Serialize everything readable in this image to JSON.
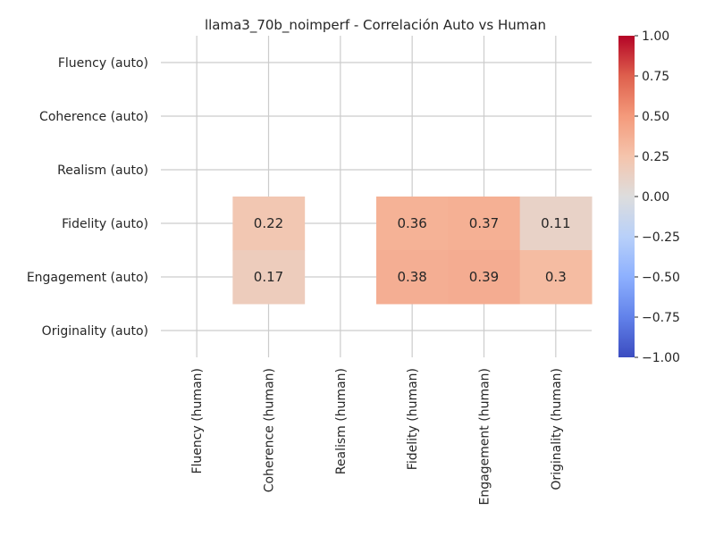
{
  "chart_data": {
    "type": "heatmap",
    "title": "llama3_70b_noimperf - Correlación Auto vs Human",
    "x_categories": [
      "Fluency (human)",
      "Coherence (human)",
      "Realism (human)",
      "Fidelity (human)",
      "Engagement (human)",
      "Originality (human)"
    ],
    "y_categories": [
      "Fluency (auto)",
      "Coherence (auto)",
      "Realism (auto)",
      "Fidelity (auto)",
      "Engagement (auto)",
      "Originality (auto)"
    ],
    "values": [
      [
        null,
        null,
        null,
        null,
        null,
        null
      ],
      [
        null,
        null,
        null,
        null,
        null,
        null
      ],
      [
        null,
        null,
        null,
        null,
        null,
        null
      ],
      [
        null,
        0.22,
        null,
        0.36,
        0.37,
        0.11
      ],
      [
        null,
        0.17,
        null,
        0.38,
        0.39,
        0.3
      ],
      [
        null,
        null,
        null,
        null,
        null,
        null
      ]
    ],
    "value_labels": [
      [
        "",
        "",
        "",
        "",
        "",
        ""
      ],
      [
        "",
        "",
        "",
        "",
        "",
        ""
      ],
      [
        "",
        "",
        "",
        "",
        "",
        ""
      ],
      [
        "",
        "0.22",
        "",
        "0.36",
        "0.37",
        "0.11"
      ],
      [
        "",
        "0.17",
        "",
        "0.38",
        "0.39",
        "0.3"
      ],
      [
        "",
        "",
        "",
        "",
        "",
        ""
      ]
    ],
    "colormap": "coolwarm",
    "vmin": -1,
    "vmax": 1,
    "colorbar_ticks": [
      "1.00",
      "0.75",
      "0.50",
      "0.25",
      "0.00",
      "−0.25",
      "−0.50",
      "−0.75",
      "−1.00"
    ],
    "colorbar_tick_values": [
      1,
      0.75,
      0.5,
      0.25,
      0,
      -0.25,
      -0.5,
      -0.75,
      -1
    ],
    "grid": true
  }
}
